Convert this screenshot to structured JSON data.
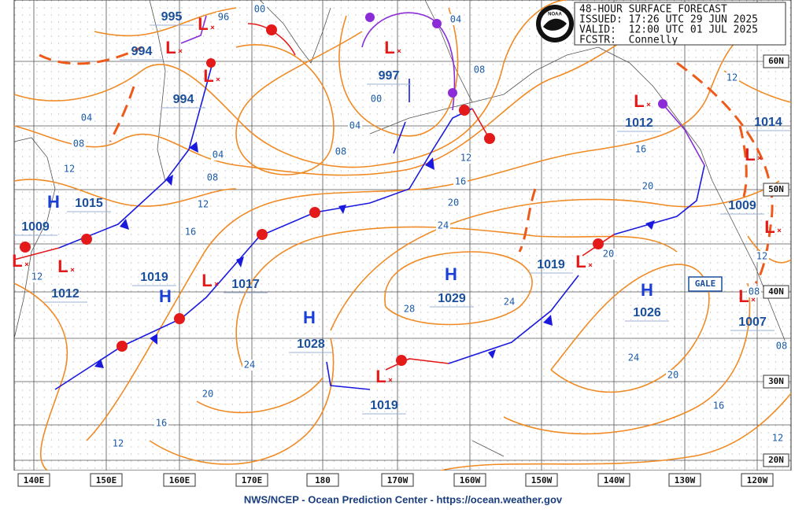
{
  "header": {
    "lines": [
      "48-HOUR SURFACE FORECAST",
      "ISSUED: 17:26 UTC 29 JUN 2025",
      "VALID:  12:00 UTC 01 JUL 2025",
      "FCSTR:  Connelly"
    ],
    "logo": "NOAA"
  },
  "longitudes": [
    "140E",
    "150E",
    "160E",
    "170E",
    "180",
    "170W",
    "160W",
    "150W",
    "140W",
    "130W",
    "120W"
  ],
  "latitudes": [
    "60N",
    "50N",
    "40N",
    "30N",
    "20N"
  ],
  "centers": [
    {
      "symbol": "L",
      "pressure": 995
    },
    {
      "symbol": "L",
      "pressure": 994
    },
    {
      "symbol": "L",
      "pressure": 994
    },
    {
      "symbol": "L",
      "pressure": 997
    },
    {
      "symbol": "H",
      "pressure": 1015
    },
    {
      "symbol": "L",
      "pressure": 1009
    },
    {
      "symbol": "L",
      "pressure": 1012
    },
    {
      "symbol": "H",
      "pressure": 1019
    },
    {
      "symbol": "L",
      "pressure": 1017
    },
    {
      "symbol": "H",
      "pressure": 1028
    },
    {
      "symbol": "L",
      "pressure": 1019
    },
    {
      "symbol": "H",
      "pressure": 1029
    },
    {
      "symbol": "L",
      "pressure": 1019
    },
    {
      "symbol": "H",
      "pressure": 1026
    },
    {
      "symbol": "L",
      "pressure": 1012
    },
    {
      "symbol": "L",
      "pressure": 1009
    },
    {
      "symbol": "L",
      "pressure": 1007
    },
    {
      "symbol": "L"
    },
    {
      "pressure": 1014
    }
  ],
  "isobar_labels": [
    "96",
    "00",
    "04",
    "08",
    "00",
    "04",
    "08",
    "12",
    "04",
    "08",
    "04",
    "08",
    "12",
    "16",
    "12",
    "16",
    "20",
    "24",
    "28",
    "24",
    "20",
    "16",
    "20",
    "12",
    "12",
    "08",
    "08",
    "24",
    "20",
    "16",
    "12",
    "24",
    "20",
    "16",
    "12",
    "12"
  ],
  "warning": "GALE",
  "footer": "NWS/NCEP - Ocean Prediction Center - https://ocean.weather.gov"
}
